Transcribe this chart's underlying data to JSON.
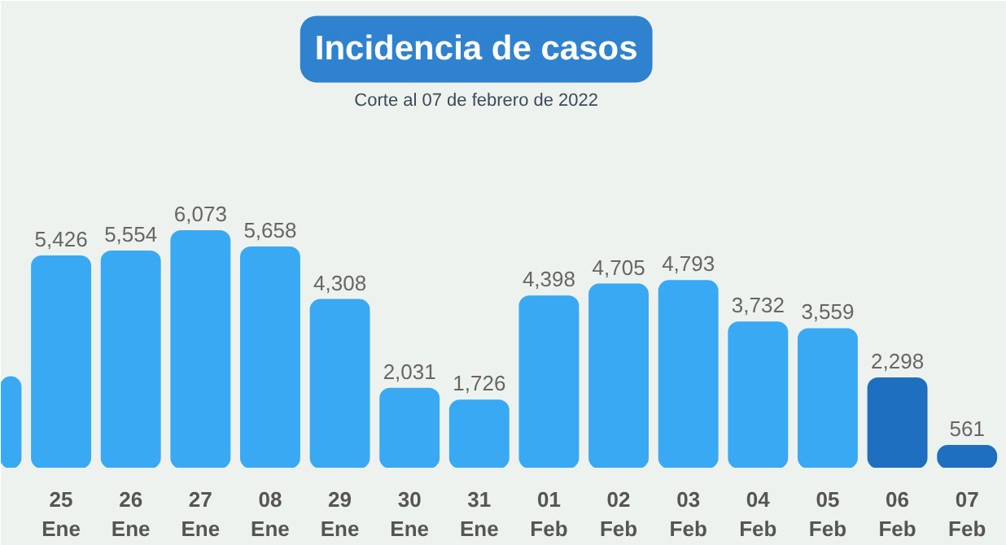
{
  "chart_data": {
    "type": "bar",
    "title": "Incidencia de casos",
    "subtitle": "Corte al 07 de febrero de 2022",
    "categories": [
      null,
      "25\nEne",
      "26\nEne",
      "27\nEne",
      "08\nEne",
      "29\nEne",
      "30\nEne",
      "31\nEne",
      "01\nFeb",
      "02\nFeb",
      "03\nFeb",
      "04\nFeb",
      "05\nFeb",
      "06\nFeb",
      "07\nFeb"
    ],
    "values": [
      2325,
      5426,
      5554,
      6073,
      5658,
      4308,
      2031,
      1726,
      4398,
      4705,
      4793,
      3732,
      3559,
      2298,
      561
    ],
    "value_labels": [
      null,
      "5,426",
      "5,554",
      "6,073",
      "5,658",
      "4,308",
      "2,031",
      "1,726",
      "4,398",
      "4,705",
      "4,793",
      "3,732",
      "3,559",
      "2,298",
      "561"
    ],
    "colors": [
      "#3aa9f4",
      "#3aa9f4",
      "#3aa9f4",
      "#3aa9f4",
      "#3aa9f4",
      "#3aa9f4",
      "#3aa9f4",
      "#3aa9f4",
      "#3aa9f4",
      "#3aa9f4",
      "#3aa9f4",
      "#3aa9f4",
      "#3aa9f4",
      "#1f6fc0",
      "#1f6fc0"
    ],
    "grid": false
  }
}
